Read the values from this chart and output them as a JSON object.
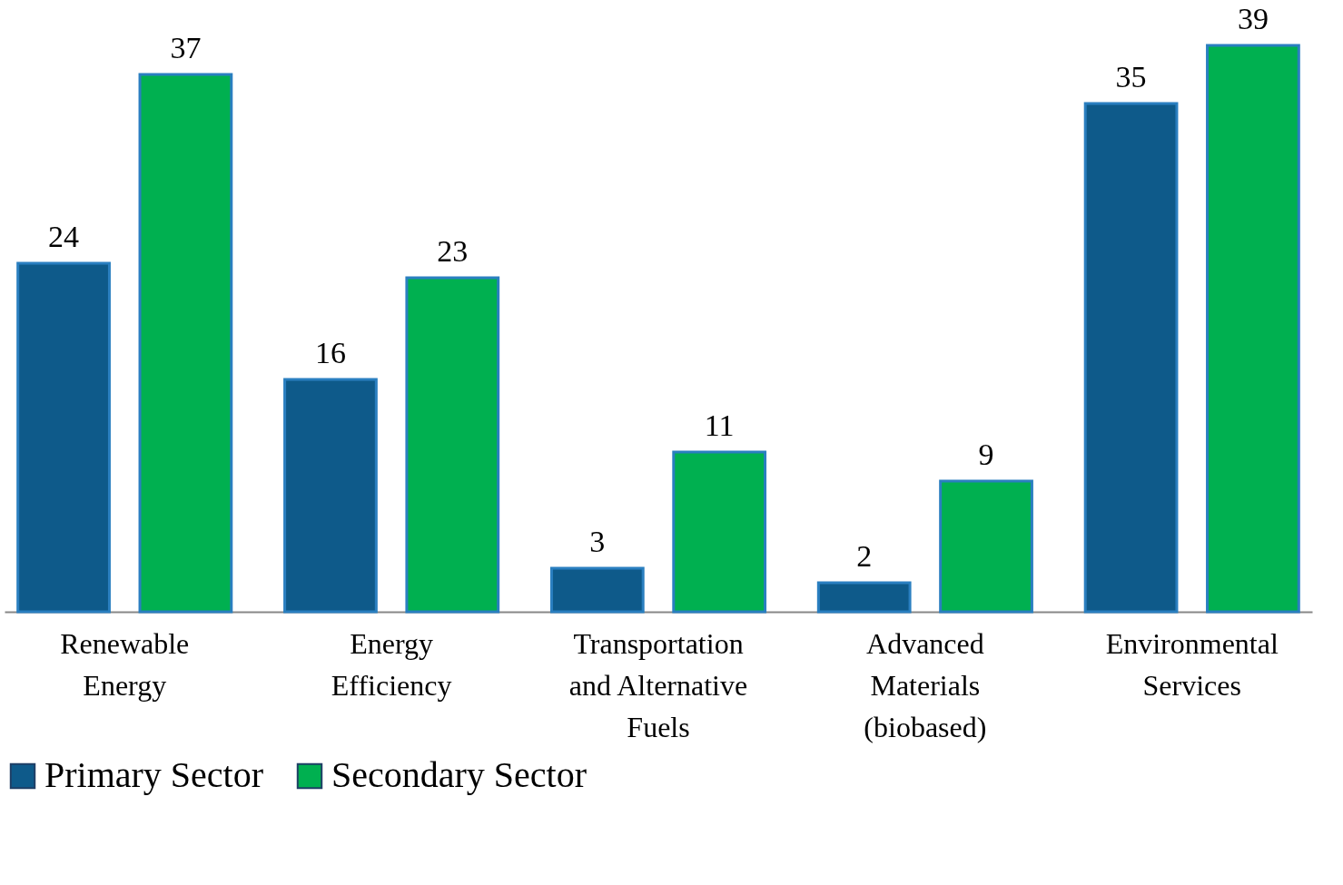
{
  "chart_data": {
    "type": "bar",
    "categories": [
      "Renewable Energy",
      "Energy Efficiency",
      "Transportation and Alternative Fuels",
      "Advanced Materials (biobased)",
      "Environmental Services"
    ],
    "series": [
      {
        "name": "Primary Sector",
        "color": "#0e5a8a",
        "values": [
          24,
          16,
          3,
          2,
          35
        ]
      },
      {
        "name": "Secondary Sector",
        "color": "#00b050",
        "values": [
          37,
          23,
          11,
          9,
          39
        ]
      }
    ],
    "data_labels": true,
    "tick_labels": "x",
    "legend": "bottom",
    "grid": false
  }
}
